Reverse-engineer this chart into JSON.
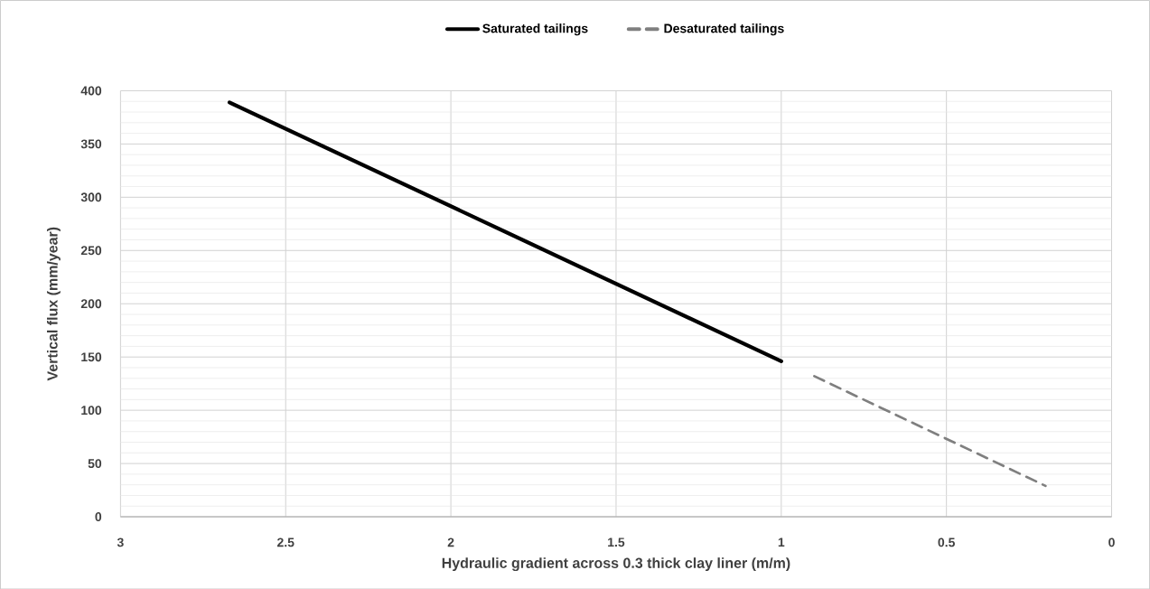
{
  "chart_data": {
    "type": "line",
    "xlabel": "Hydraulic gradient across 0.3 thick clay liner (m/m)",
    "ylabel": "Vertical flux (mm/year)",
    "series": [
      {
        "name": "Saturated tailings",
        "color": "#000000",
        "line_style": "solid",
        "x": [
          2.67,
          1
        ],
        "values": [
          389,
          146
        ]
      },
      {
        "name": "Desaturated tailings",
        "color": "#7f7f7f",
        "line_style": "dashed",
        "x": [
          0.9,
          0.2
        ],
        "values": [
          132,
          29
        ]
      }
    ],
    "xlim": [
      3,
      0
    ],
    "xticks": [
      3,
      2.5,
      2,
      1.5,
      1,
      0.5,
      0
    ],
    "ylim": [
      0,
      400
    ],
    "yticks": [
      0,
      50,
      100,
      150,
      200,
      250,
      300,
      350,
      400
    ],
    "grid": true,
    "legend": "top",
    "marker": "none"
  }
}
